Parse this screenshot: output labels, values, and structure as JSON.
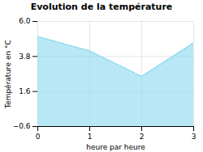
{
  "chart_data": {
    "type": "area",
    "title": "Evolution de la température",
    "x_label": "heure par heure",
    "y_label": "Température en °C",
    "x": [
      0,
      1,
      2,
      3
    ],
    "values": [
      5.05,
      4.15,
      2.55,
      4.65
    ],
    "color": "#88d8ee",
    "line_style": "dotted",
    "xlim": [
      0,
      3
    ],
    "xticks": [
      0,
      1,
      2,
      3
    ],
    "ylim": [
      -0.6,
      6.0
    ],
    "yticks": [
      -0.6,
      1.6,
      3.8,
      {
        "value": 6.0,
        "label": "6.0"
      }
    ],
    "grid": true
  }
}
